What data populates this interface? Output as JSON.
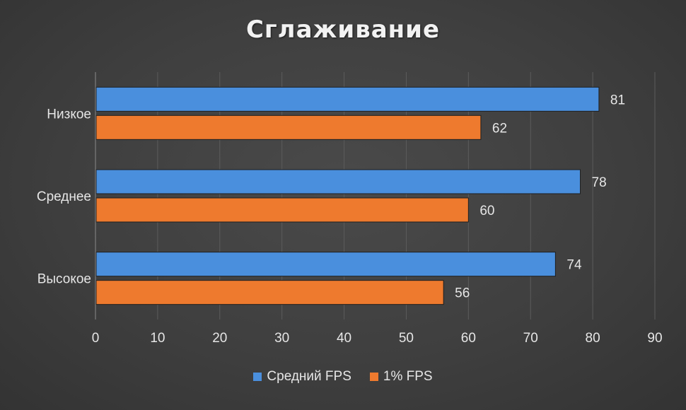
{
  "chart_data": {
    "type": "bar",
    "orientation": "horizontal",
    "title": "Сглаживание",
    "categories": [
      "Низкое",
      "Среднее",
      "Высокое"
    ],
    "series": [
      {
        "name": "Средний FPS",
        "values": [
          81,
          78,
          74
        ],
        "color": "#4a8fdd"
      },
      {
        "name": "1% FPS",
        "values": [
          62,
          60,
          56
        ],
        "color": "#ee7a2e"
      }
    ],
    "xlim": [
      0,
      90
    ],
    "xticks": [
      "0",
      "10",
      "20",
      "30",
      "40",
      "50",
      "60",
      "70",
      "80",
      "90"
    ],
    "xlabel": "",
    "ylabel": "",
    "grid": true,
    "legend_position": "bottom",
    "data_labels": true
  }
}
